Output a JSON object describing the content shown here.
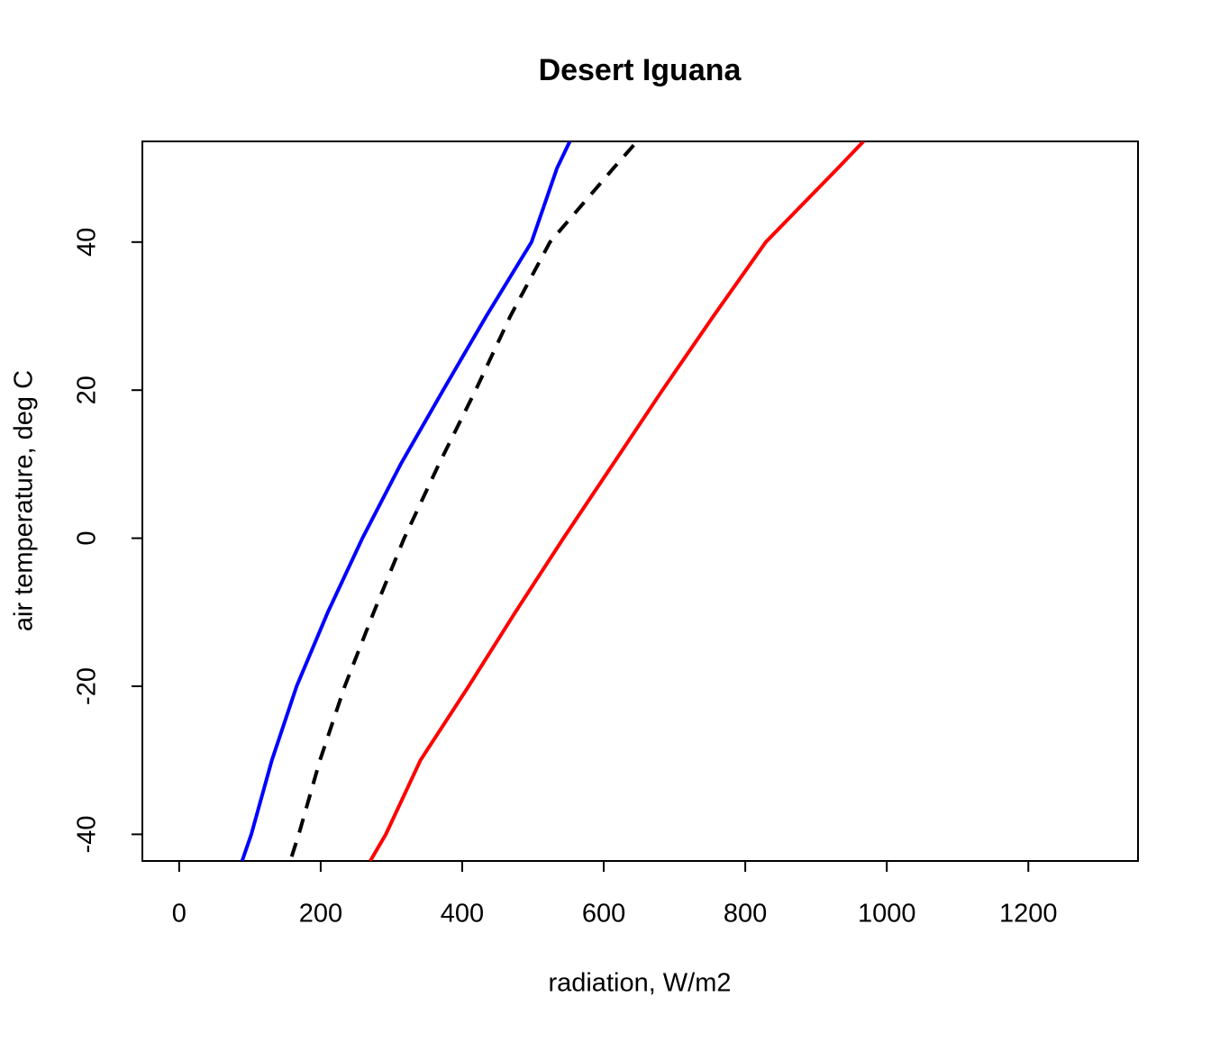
{
  "chart_data": {
    "type": "line",
    "title": "Desert Iguana",
    "xlabel": "radiation, W/m2",
    "ylabel": "air temperature, deg C",
    "xlim": [
      -52,
      1355
    ],
    "ylim": [
      -43.6,
      53.6
    ],
    "xticks": [
      0,
      200,
      400,
      600,
      800,
      1000,
      1200
    ],
    "yticks": [
      -40,
      -20,
      0,
      20,
      40
    ],
    "grid": false,
    "series": [
      {
        "color": "#0000ff",
        "dash": false,
        "x": [
          89,
          102,
          131,
          166,
          210,
          259,
          313,
          373,
          434,
          498,
          534,
          552
        ],
        "values": [
          -43.6,
          -40,
          -30,
          -20,
          -10,
          0,
          10,
          20,
          30,
          40,
          50,
          53.6
        ]
      },
      {
        "color": "#000000",
        "dash": true,
        "x": [
          159,
          169,
          199,
          234,
          275,
          318,
          367,
          419,
          468,
          524,
          614,
          647
        ],
        "values": [
          -43,
          -40,
          -30,
          -20,
          -10,
          0,
          10,
          20,
          30,
          40,
          50,
          53.6
        ]
      },
      {
        "color": "#ff0000",
        "dash": false,
        "x": [
          270,
          292,
          341,
          409,
          475,
          543,
          613,
          683,
          755,
          829,
          931,
          967
        ],
        "values": [
          -43.6,
          -40,
          -30,
          -20,
          -10,
          0,
          10,
          20,
          30,
          40,
          50,
          53.6
        ]
      }
    ]
  }
}
